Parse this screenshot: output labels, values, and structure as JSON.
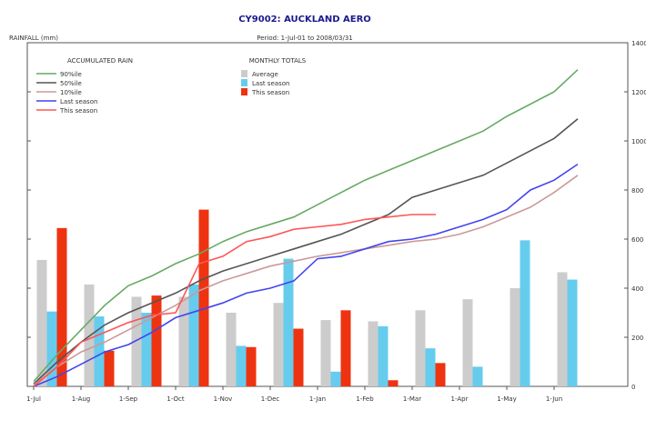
{
  "chart_data": {
    "type": "bar+line",
    "title": "CY9002: AUCKLAND AERO",
    "ylabel": "RAINFALL (mm)",
    "period": "Period: 1-Jul-01 to 2008/03/31",
    "x_ticks": [
      "1-Jul",
      "1-Aug",
      "1-Sep",
      "1-Oct",
      "1-Nov",
      "1-Dec",
      "1-Jan",
      "1-Feb",
      "1-Mar",
      "1-Apr",
      "1-May",
      "1-Jun"
    ],
    "ylim": [
      0,
      1400
    ],
    "y_ticks": [
      0,
      200,
      400,
      600,
      800,
      1000,
      1200,
      1400
    ],
    "legend_accum": {
      "heading": "ACCUMULATED RAIN",
      "entries": [
        {
          "name": "90%ile",
          "color": "#66aa66"
        },
        {
          "name": "50%ile",
          "color": "#555555"
        },
        {
          "name": "10%ile",
          "color": "#cc9999"
        },
        {
          "name": "Last season",
          "color": "#4444ee"
        },
        {
          "name": "This season",
          "color": "#ff5555"
        }
      ]
    },
    "legend_monthly": {
      "heading": "MONTHLY TOTALS",
      "entries": [
        {
          "name": "Average",
          "color": "#cccccc"
        },
        {
          "name": "Last season",
          "color": "#66ccee"
        },
        {
          "name": "This season",
          "color": "#ee3311"
        }
      ]
    },
    "months": [
      "Jul",
      "Aug",
      "Sep",
      "Oct",
      "Nov",
      "Dec",
      "Jan",
      "Feb",
      "Mar",
      "Apr",
      "May",
      "Jun"
    ],
    "monthly_series": [
      {
        "name": "Average",
        "color": "#cccccc",
        "values": [
          515,
          415,
          365,
          365,
          300,
          340,
          270,
          265,
          310,
          355,
          400,
          465
        ]
      },
      {
        "name": "Last season",
        "color": "#66ccee",
        "values": [
          305,
          285,
          300,
          415,
          165,
          520,
          60,
          245,
          155,
          80,
          595,
          435
        ]
      },
      {
        "name": "This season",
        "color": "#ee3311",
        "values": [
          645,
          145,
          370,
          720,
          160,
          235,
          310,
          25,
          95,
          null,
          null,
          null
        ]
      }
    ],
    "accum_series": [
      {
        "name": "90%ile",
        "color": "#66aa66",
        "x": [
          0,
          0.5,
          1,
          1.5,
          2,
          2.5,
          3,
          3.5,
          4,
          4.5,
          5,
          5.5,
          6,
          6.5,
          7,
          7.5,
          8,
          8.5,
          9,
          9.5,
          10,
          10.5,
          11,
          11.5
        ],
        "y": [
          20,
          130,
          230,
          330,
          410,
          450,
          500,
          540,
          590,
          630,
          660,
          690,
          740,
          790,
          840,
          880,
          920,
          960,
          1000,
          1040,
          1100,
          1150,
          1200,
          1290
        ]
      },
      {
        "name": "50%ile",
        "color": "#555555",
        "x": [
          0,
          0.5,
          1,
          1.5,
          2,
          2.5,
          3,
          3.5,
          4,
          4.5,
          5,
          5.5,
          6,
          6.5,
          7,
          7.5,
          8,
          8.5,
          9,
          9.5,
          10,
          10.5,
          11,
          11.5
        ],
        "y": [
          10,
          100,
          180,
          250,
          300,
          340,
          380,
          430,
          470,
          500,
          530,
          560,
          590,
          620,
          660,
          700,
          770,
          800,
          830,
          860,
          910,
          960,
          1010,
          1090
        ]
      },
      {
        "name": "10%ile",
        "color": "#cc9999",
        "x": [
          0,
          0.5,
          1,
          1.5,
          2,
          2.5,
          3,
          3.5,
          4,
          4.5,
          5,
          5.5,
          6,
          6.5,
          7,
          7.5,
          8,
          8.5,
          9,
          9.5,
          10,
          10.5,
          11,
          11.5
        ],
        "y": [
          5,
          80,
          140,
          180,
          230,
          280,
          330,
          390,
          430,
          460,
          490,
          510,
          530,
          545,
          560,
          575,
          590,
          600,
          620,
          650,
          690,
          730,
          790,
          860
        ]
      },
      {
        "name": "Last season",
        "color": "#4444ee",
        "x": [
          0,
          0.5,
          1,
          1.5,
          2,
          2.5,
          3,
          3.5,
          4,
          4.5,
          5,
          5.5,
          6,
          6.5,
          7,
          7.5,
          8,
          8.5,
          9,
          9.5,
          10,
          10.5,
          11,
          11.5
        ],
        "y": [
          0,
          40,
          90,
          140,
          170,
          220,
          280,
          310,
          340,
          380,
          400,
          430,
          520,
          530,
          560,
          590,
          600,
          620,
          650,
          680,
          720,
          800,
          840,
          905
        ]
      },
      {
        "name": "This season",
        "color": "#ff5555",
        "x": [
          0,
          0.5,
          1,
          1.5,
          2,
          2.5,
          3,
          3.5,
          4,
          4.5,
          5,
          5.5,
          6,
          6.5,
          7,
          7.5,
          8,
          8.5
        ],
        "y": [
          0,
          80,
          180,
          220,
          260,
          290,
          300,
          500,
          530,
          590,
          610,
          640,
          650,
          660,
          680,
          690,
          700,
          700
        ]
      }
    ]
  }
}
